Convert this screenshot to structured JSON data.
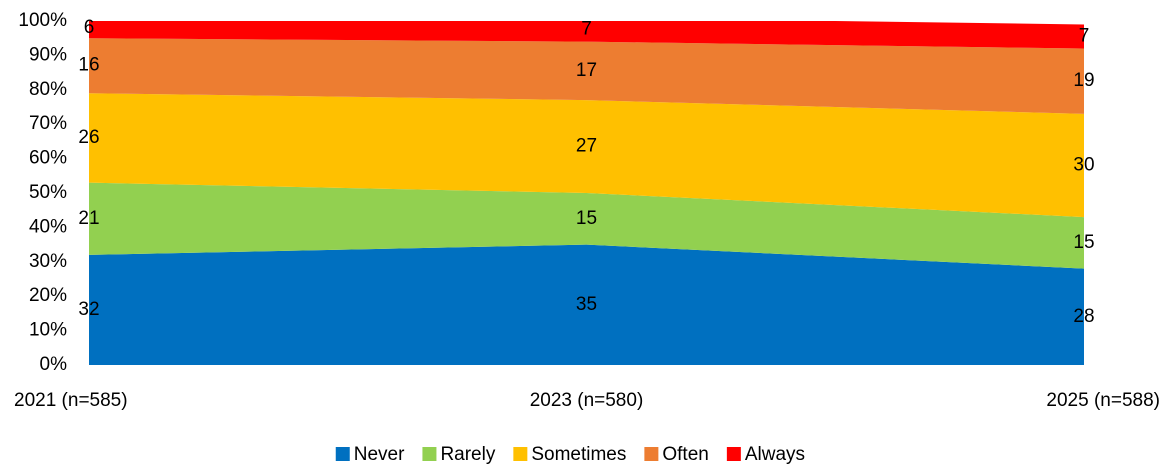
{
  "chart_data": {
    "type": "area",
    "stacked": true,
    "categories": [
      "2021 (n=585)",
      "2023 (n=580)",
      "2025 (n=588)"
    ],
    "series": [
      {
        "name": "Never",
        "color": "#0070c0",
        "values": [
          32,
          35,
          28
        ]
      },
      {
        "name": "Rarely",
        "color": "#92d050",
        "values": [
          21,
          15,
          15
        ]
      },
      {
        "name": "Sometimes",
        "color": "#ffc000",
        "values": [
          26,
          27,
          30
        ]
      },
      {
        "name": "Often",
        "color": "#ed7d31",
        "values": [
          16,
          17,
          19
        ]
      },
      {
        "name": "Always",
        "color": "#ff0000",
        "values": [
          6,
          7,
          7
        ]
      }
    ],
    "ylim": [
      0,
      100
    ],
    "yticks": [
      {
        "value": 0,
        "label": "0%"
      },
      {
        "value": 10,
        "label": "10%"
      },
      {
        "value": 20,
        "label": "20%"
      },
      {
        "value": 30,
        "label": "30%"
      },
      {
        "value": 40,
        "label": "40%"
      },
      {
        "value": 50,
        "label": "50%"
      },
      {
        "value": 60,
        "label": "60%"
      },
      {
        "value": 70,
        "label": "70%"
      },
      {
        "value": 80,
        "label": "80%"
      },
      {
        "value": 90,
        "label": "90%"
      },
      {
        "value": 100,
        "label": "100%"
      }
    ],
    "legend": "bottom",
    "grid": false
  }
}
